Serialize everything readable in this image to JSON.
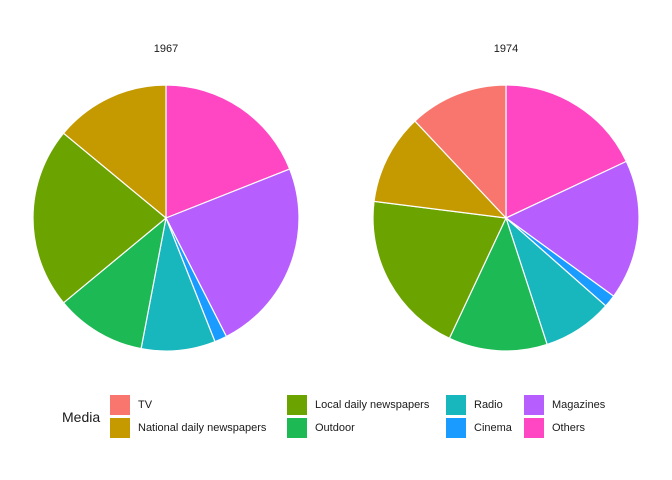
{
  "chart_data": [
    {
      "type": "pie",
      "title": "1967",
      "categories": [
        "TV",
        "National daily newspapers",
        "Local daily newspapers",
        "Outdoor",
        "Radio",
        "Cinema",
        "Magazines",
        "Others"
      ],
      "values": [
        0,
        14,
        22,
        11,
        9,
        1.5,
        23.5,
        19
      ],
      "unit": "%"
    },
    {
      "type": "pie",
      "title": "1974",
      "categories": [
        "TV",
        "National daily newspapers",
        "Local daily newspapers",
        "Outdoor",
        "Radio",
        "Cinema",
        "Magazines",
        "Others"
      ],
      "values": [
        12,
        11,
        20,
        12,
        8.5,
        1.5,
        17,
        18
      ],
      "unit": "%"
    }
  ],
  "legend": {
    "title": "Media",
    "items": [
      {
        "label": "TV",
        "color": "#F8766D"
      },
      {
        "label": "National daily newspapers",
        "color": "#C49A00"
      },
      {
        "label": "Local daily newspapers",
        "color": "#6BA300"
      },
      {
        "label": "Outdoor",
        "color": "#1DB954"
      },
      {
        "label": "Radio",
        "color": "#18B6BD"
      },
      {
        "label": "Cinema",
        "color": "#1A9BFF"
      },
      {
        "label": "Magazines",
        "color": "#B75EFF"
      },
      {
        "label": "Others",
        "color": "#FF47C4"
      }
    ]
  }
}
